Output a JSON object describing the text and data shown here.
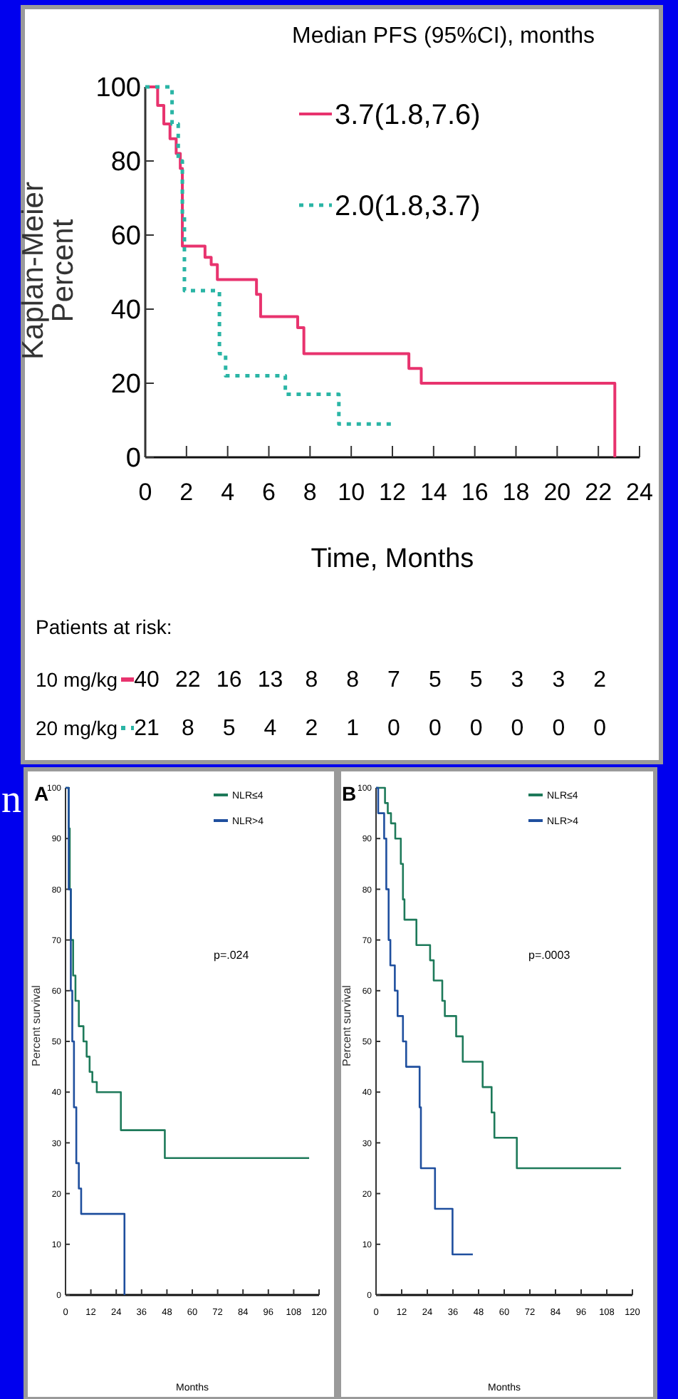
{
  "chart_data": [
    {
      "type": "step",
      "legend_title": "Median PFS (95%CI), months",
      "ylabel": "Kaplan-Meier Percent",
      "xlabel": "Time, Months",
      "xlim": [
        0,
        24
      ],
      "xticks": [
        0,
        2,
        4,
        6,
        8,
        10,
        12,
        14,
        16,
        18,
        20,
        22,
        24
      ],
      "ylim": [
        0,
        100
      ],
      "yticks": [
        0,
        20,
        40,
        60,
        80,
        100
      ],
      "legend": "top right",
      "series": [
        {
          "name": "3.7(1.8,7.6)",
          "color": "#e8336e",
          "line_style": "solid",
          "x": [
            0,
            0.6,
            0.9,
            1.2,
            1.5,
            1.7,
            1.8,
            2.9,
            3.2,
            3.5,
            5.4,
            5.6,
            7.4,
            7.7,
            12.8,
            13.4,
            22.8
          ],
          "values": [
            100,
            95,
            90,
            86,
            82,
            78,
            57,
            54,
            52,
            48,
            44,
            38,
            35,
            28,
            24,
            20,
            0
          ]
        },
        {
          "name": "2.0(1.8,3.7)",
          "color": "#2ab5a5",
          "line_style": "dotted",
          "x": [
            0,
            1.3,
            1.6,
            1.8,
            1.9,
            3.6,
            3.9,
            6.8,
            9.4,
            12.0
          ],
          "values": [
            100,
            90,
            80,
            65,
            45,
            28,
            22,
            17,
            9,
            9
          ]
        }
      ],
      "annotations": [
        "Patients at risk:",
        "10 mg/kg",
        "40",
        "22",
        "16",
        "13",
        "8",
        "8",
        "7",
        "5",
        "5",
        "3",
        "3",
        "2",
        "20 mg/kg",
        "21",
        "8",
        "5",
        "4",
        "2",
        "1",
        "0",
        "0",
        "0",
        "0",
        "0",
        "0"
      ]
    },
    {
      "type": "step",
      "title": "A",
      "ylabel": "Percent survival",
      "xlabel": "Months",
      "xlim": [
        0,
        120
      ],
      "xticks": [
        0,
        12,
        24,
        36,
        48,
        60,
        72,
        84,
        96,
        108,
        120
      ],
      "ylim": [
        0,
        100
      ],
      "yticks": [
        0,
        10,
        20,
        30,
        40,
        50,
        60,
        70,
        80,
        90,
        100
      ],
      "legend": "top right",
      "series": [
        {
          "name": "NLR≤4",
          "color": "#1e7a5a",
          "x": [
            0,
            1.5,
            2,
            2.5,
            3.6,
            4.7,
            6.3,
            8.5,
            10,
            11.4,
            12.7,
            14.8,
            26.2,
            47,
            115.3
          ],
          "values": [
            100,
            92,
            80,
            70,
            63,
            58,
            53,
            50,
            47,
            44,
            42,
            40,
            32.5,
            27,
            27
          ]
        },
        {
          "name": "NLR>4",
          "color": "#1f4f9e",
          "x": [
            0,
            1.5,
            2.5,
            3.2,
            4,
            5.1,
            6.3,
            7.4,
            27.9
          ],
          "values": [
            100,
            80,
            60,
            50,
            37,
            26,
            21,
            16,
            0
          ]
        }
      ],
      "annotations": [
        "p=.024",
        "n"
      ]
    },
    {
      "type": "step",
      "title": "B",
      "ylabel": "Percent survival",
      "xlabel": "Months",
      "xlim": [
        0,
        120
      ],
      "xticks": [
        0,
        12,
        24,
        36,
        48,
        60,
        72,
        84,
        96,
        108,
        120
      ],
      "ylim": [
        0,
        100
      ],
      "yticks": [
        0,
        10,
        20,
        30,
        40,
        50,
        60,
        70,
        80,
        90,
        100
      ],
      "legend": "top right",
      "series": [
        {
          "name": "NLR≤4",
          "color": "#1e7a5a",
          "x": [
            0,
            4.2,
            5.5,
            7,
            9,
            11.6,
            12.6,
            13.3,
            18.9,
            25.3,
            27,
            31,
            32.2,
            37.5,
            40.6,
            49.9,
            54.1,
            55.4,
            65.9,
            114.7
          ],
          "values": [
            100,
            97,
            95,
            93,
            90,
            85,
            78,
            74,
            69,
            66,
            62,
            58,
            55,
            51,
            46,
            41,
            36,
            31,
            25,
            25
          ]
        },
        {
          "name": "NLR>4",
          "color": "#1f4f9e",
          "x": [
            0,
            1,
            3.8,
            4.8,
            5.9,
            6.7,
            8.8,
            10.1,
            12.6,
            14.1,
            20.4,
            21,
            27.6,
            35.8,
            45.3
          ],
          "values": [
            100,
            95,
            90,
            80,
            70,
            65,
            60,
            55,
            50,
            45,
            37,
            25,
            17,
            8,
            8
          ]
        }
      ],
      "annotations": [
        "p=.0003"
      ]
    }
  ]
}
